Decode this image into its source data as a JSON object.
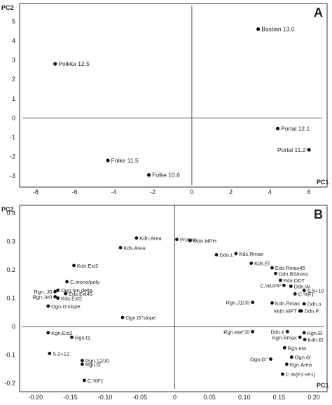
{
  "panels": [
    {
      "panel_label": "A",
      "xlabel": "PC1",
      "ylabel": "PC2",
      "x_ticks": [
        -8,
        -6,
        -4,
        -2,
        0,
        2,
        4,
        6
      ],
      "y_ticks": [
        -3,
        -2,
        -1,
        0,
        1,
        2,
        3,
        4,
        5
      ],
      "xlim": [
        -8.5,
        6.5
      ],
      "ylim": [
        -3.4,
        5.6
      ]
    },
    {
      "panel_label": "B",
      "xlabel": "PC1",
      "ylabel": "PC2",
      "x_ticks": [
        -0.2,
        -0.15,
        -0.1,
        -0.05,
        0,
        0.05,
        0.1,
        0.15,
        0.2
      ],
      "x_tick_labels": [
        "-0.20",
        "-0.15",
        "-0.10",
        "-0.05",
        "0",
        "0.05",
        "0.10",
        "0.15",
        "0.20"
      ],
      "y_ticks": [
        -0.2,
        -0.1,
        0,
        0.1,
        0.2,
        0.3,
        0.4
      ],
      "y_tick_labels": [
        "-0.2",
        "-0.1",
        "0",
        "0.1",
        "0.2",
        "0.3",
        "0.4"
      ],
      "xlim": [
        -0.215,
        0.21
      ],
      "ylim": [
        -0.215,
        0.415
      ]
    }
  ],
  "chart_data": [
    {
      "type": "scatter",
      "panel": "A",
      "xlabel": "PC1",
      "ylabel": "PC2",
      "xlim": [
        -8.5,
        6.5
      ],
      "ylim": [
        -3.4,
        5.6
      ],
      "grid": false,
      "points": [
        {
          "label": "Bastian 13.0",
          "x": 3.4,
          "y": 4.6,
          "label_side": "right"
        },
        {
          "label": "Polkka 12.5",
          "x": -7.0,
          "y": 2.8,
          "label_side": "right"
        },
        {
          "label": "Portal 12.1",
          "x": 4.4,
          "y": -0.55,
          "label_side": "right"
        },
        {
          "label": "Portal 11.2",
          "x": 6.0,
          "y": -1.65,
          "label_side": "left"
        },
        {
          "label": "Folke 11.5",
          "x": -4.3,
          "y": -2.2,
          "label_side": "right"
        },
        {
          "label": "Folke 10.6",
          "x": -2.2,
          "y": -2.95,
          "label_side": "right"
        }
      ]
    },
    {
      "type": "scatter",
      "panel": "B",
      "xlabel": "PC1",
      "ylabel": "PC2",
      "xlim": [
        -0.215,
        0.21
      ],
      "ylim": [
        -0.215,
        0.415
      ],
      "grid": false,
      "points": [
        {
          "label": "Kdn.Area",
          "x": -0.055,
          "y": 0.312,
          "label_side": "right"
        },
        {
          "label": "Kds.Area",
          "x": -0.078,
          "y": 0.278,
          "label_side": "right"
        },
        {
          "label": "Kdn.Ext2",
          "x": -0.145,
          "y": 0.215,
          "label_side": "right"
        },
        {
          "label": "C.mono/poly",
          "x": -0.155,
          "y": 0.158,
          "label_side": "right"
        },
        {
          "label": "Ogn.tan delta",
          "x": -0.168,
          "y": 0.128,
          "label_side": "right"
        },
        {
          "label": "Rgn. J0",
          "x": -0.172,
          "y": 0.123,
          "label_side": "left"
        },
        {
          "label": "Eds.Ext45",
          "x": -0.157,
          "y": 0.116,
          "label_side": "right"
        },
        {
          "label": "Rgn.Je0",
          "x": -0.172,
          "y": 0.105,
          "label_side": "left"
        },
        {
          "label": "Kds.Ext2",
          "x": -0.168,
          "y": 0.1,
          "label_side": "right"
        },
        {
          "label": "Ogn.G'slope",
          "x": -0.182,
          "y": 0.072,
          "label_side": "right"
        },
        {
          "label": "Ogn.G''slope",
          "x": -0.075,
          "y": 0.032,
          "label_side": "right"
        },
        {
          "label": "Kgn.Ext2",
          "x": -0.182,
          "y": -0.022,
          "label_side": "right"
        },
        {
          "label": "Rgn.t1",
          "x": -0.148,
          "y": -0.038,
          "label_side": "right"
        },
        {
          "label": "S.2+12",
          "x": -0.18,
          "y": -0.095,
          "label_side": "right"
        },
        {
          "label": "Rgn.12/J0",
          "x": -0.133,
          "y": -0.12,
          "label_side": "right"
        },
        {
          "label": "Rgn.t2",
          "x": -0.133,
          "y": -0.133,
          "label_side": "right"
        },
        {
          "label": "C.%F1",
          "x": -0.13,
          "y": -0.19,
          "label_side": "right"
        },
        {
          "label": "Protein",
          "x": 0.003,
          "y": 0.307,
          "label_side": "right"
        },
        {
          "label": "Mdn.MPH",
          "x": 0.022,
          "y": 0.303,
          "label_side": "right"
        },
        {
          "label": "Ddn.L",
          "x": 0.06,
          "y": 0.253,
          "label_side": "right"
        },
        {
          "label": "Kds.Rmax",
          "x": 0.088,
          "y": 0.257,
          "label_side": "right"
        },
        {
          "label": "Kds.El",
          "x": 0.11,
          "y": 0.223,
          "label_side": "right"
        },
        {
          "label": "Eds.Rmax45",
          "x": 0.14,
          "y": 0.207,
          "label_side": "right"
        },
        {
          "label": "Ddn.BStress",
          "x": 0.145,
          "y": 0.187,
          "label_side": "right"
        },
        {
          "label": "Fdn.DDT",
          "x": 0.152,
          "y": 0.163,
          "label_side": "right"
        },
        {
          "label": "C.%UPP",
          "x": 0.157,
          "y": 0.145,
          "label_side": "left"
        },
        {
          "label": "Ddn.W",
          "x": 0.167,
          "y": 0.142,
          "label_side": "right"
        },
        {
          "label": "S.5+10",
          "x": 0.186,
          "y": 0.127,
          "label_side": "right"
        },
        {
          "label": "C.%F1'",
          "x": 0.173,
          "y": 0.115,
          "label_side": "right"
        },
        {
          "label": "Rgn.J1/J0",
          "x": 0.112,
          "y": 0.085,
          "label_side": "left"
        },
        {
          "label": "Kdn.Rmax",
          "x": 0.14,
          "y": 0.083,
          "label_side": "right"
        },
        {
          "label": "Ddn.n",
          "x": 0.186,
          "y": 0.08,
          "label_side": "right"
        },
        {
          "label": "Mdn.MPT",
          "x": 0.18,
          "y": 0.055,
          "label_side": "left"
        },
        {
          "label": "Ddn.P",
          "x": 0.182,
          "y": 0.055,
          "label_side": "right"
        },
        {
          "label": "Rgn.eta*J0",
          "x": 0.112,
          "y": -0.018,
          "label_side": "left"
        },
        {
          "label": "Ddn.k",
          "x": 0.162,
          "y": -0.018,
          "label_side": "left"
        },
        {
          "label": "Kgn.El",
          "x": 0.186,
          "y": -0.022,
          "label_side": "right"
        },
        {
          "label": "Kgn.Rmax",
          "x": 0.18,
          "y": -0.038,
          "label_side": "left"
        },
        {
          "label": "Kdn.El",
          "x": 0.187,
          "y": -0.046,
          "label_side": "right"
        },
        {
          "label": "Rgn.eta",
          "x": 0.158,
          "y": -0.075,
          "label_side": "right"
        },
        {
          "label": "Ogn.G''",
          "x": 0.138,
          "y": -0.115,
          "label_side": "left"
        },
        {
          "label": "Ogn.G'",
          "x": 0.168,
          "y": -0.108,
          "label_side": "right"
        },
        {
          "label": "Kgn.Area",
          "x": 0.161,
          "y": -0.133,
          "label_side": "right"
        },
        {
          "label": "C.%(F1'+F1)",
          "x": 0.155,
          "y": -0.168,
          "label_side": "right"
        }
      ]
    }
  ]
}
